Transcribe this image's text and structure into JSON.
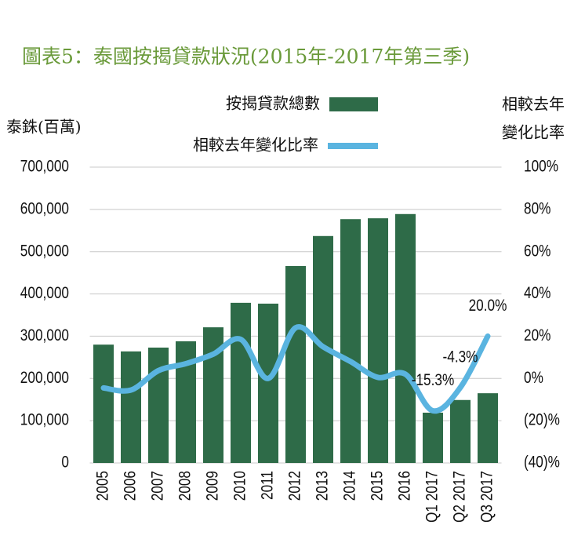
{
  "chart_data": {
    "type": "bar_line",
    "title": "圖表5：泰國按揭貸款狀況(2015年-2017年第三季)",
    "y_label": "泰銖(百萬)",
    "y2_label": [
      "相較去年",
      "變化比率"
    ],
    "categories": [
      "2005",
      "2006",
      "2007",
      "2008",
      "2009",
      "2010",
      "2011",
      "2012",
      "2013",
      "2014",
      "2015",
      "2016",
      "Q1 2017",
      "Q2 2017",
      "Q3 2017"
    ],
    "series": [
      {
        "name": "按揭貸款總數",
        "color": "#2e6b48",
        "type": "bar",
        "values": [
          280000,
          264000,
          273000,
          288000,
          321000,
          379000,
          377000,
          466000,
          537000,
          577000,
          579000,
          589000,
          119000,
          149000,
          165000
        ]
      },
      {
        "name": "相較去年變化比率",
        "color": "#5ab4e0",
        "type": "line",
        "axis": "y2",
        "values": [
          -4.5,
          -5.5,
          3.7,
          7,
          11.5,
          18.5,
          0,
          24,
          15,
          8,
          0.5,
          2,
          -15.3,
          -4.3,
          20.0
        ],
        "value_labels": [
          null,
          null,
          null,
          null,
          null,
          null,
          null,
          null,
          null,
          null,
          null,
          null,
          "-15.3%",
          "-4.3%",
          "20.0%"
        ]
      }
    ],
    "ylim": [
      0,
      700000
    ],
    "yticks": [
      0,
      {
        "value": 100000,
        "label": "100,000"
      },
      {
        "value": 200000,
        "label": "200,000"
      },
      {
        "value": 300000,
        "label": "300,000"
      },
      {
        "value": 400000,
        "label": "400,000"
      },
      {
        "value": 500000,
        "label": "500,000"
      },
      {
        "value": 600000,
        "label": "600,000"
      },
      {
        "value": 700000,
        "label": "700,000"
      }
    ],
    "y2lim": [
      -40,
      100
    ],
    "y2ticks": [
      {
        "value": -40,
        "label": "(40)%"
      },
      {
        "value": -20,
        "label": "(20)%"
      },
      {
        "value": 0,
        "label": "0%"
      },
      {
        "value": 20,
        "label": "20%"
      },
      {
        "value": 40,
        "label": "40%"
      },
      {
        "value": 60,
        "label": "60%"
      },
      {
        "value": 80,
        "label": "80%"
      },
      {
        "value": 100,
        "label": "100%"
      }
    ],
    "grid": true
  }
}
